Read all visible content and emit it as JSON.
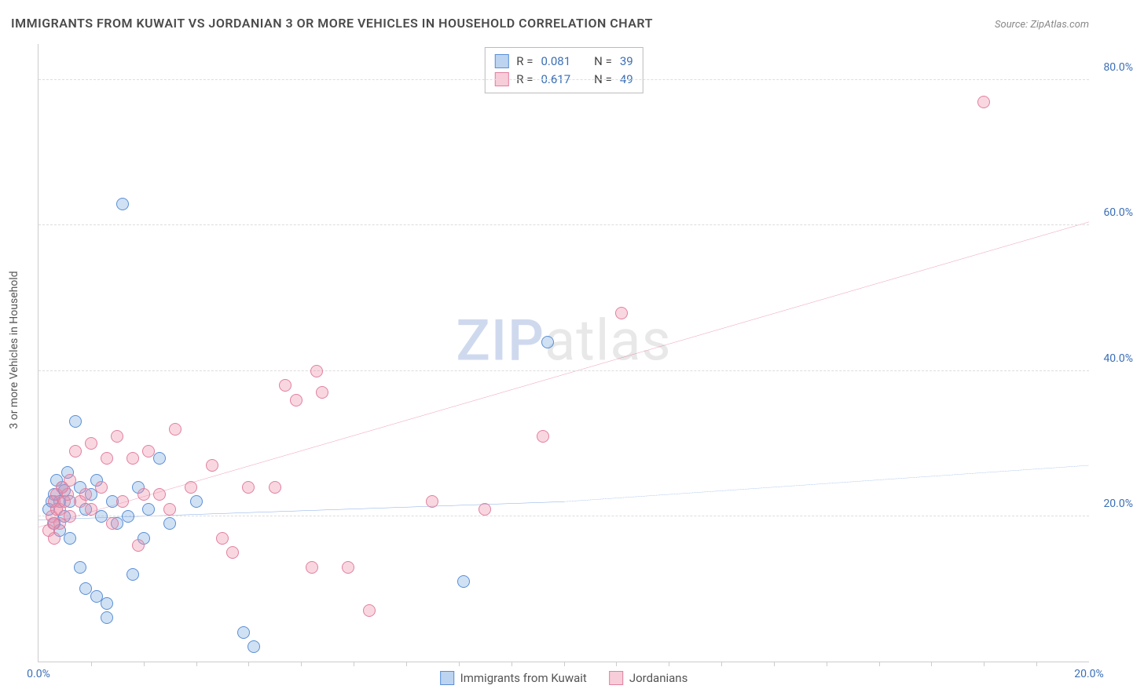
{
  "title": "IMMIGRANTS FROM KUWAIT VS JORDANIAN 3 OR MORE VEHICLES IN HOUSEHOLD CORRELATION CHART",
  "title_fontsize": 16,
  "source_label": "Source:",
  "source_name": "ZipAtlas.com",
  "source_fontsize": 13,
  "ylabel": "3 or more Vehicles in Household",
  "watermark_a": "ZIP",
  "watermark_b": "atlas",
  "chart": {
    "type": "scatter",
    "background_color": "#ffffff",
    "grid_color": "#dddddd",
    "axis_color": "#cccccc",
    "xlim": [
      0,
      20
    ],
    "ylim": [
      0,
      85
    ],
    "xticks": [
      0,
      20
    ],
    "xtick_labels": [
      "0.0%",
      "20.0%"
    ],
    "xtick_minor": [
      1,
      2,
      3,
      4,
      5,
      6,
      7,
      8,
      9,
      10,
      11,
      12,
      13,
      14,
      15,
      16,
      17,
      18,
      19
    ],
    "yticks": [
      20,
      40,
      60,
      80
    ],
    "ytick_labels": [
      "20.0%",
      "40.0%",
      "60.0%",
      "80.0%"
    ],
    "marker_radius": 8,
    "marker_stroke_width": 1.5,
    "series": [
      {
        "name": "Immigrants from Kuwait",
        "fill": "rgba(120,168,224,0.35)",
        "stroke": "#5a8fd6",
        "swatch_fill": "#bcd4f0",
        "swatch_stroke": "#5a8fd6",
        "R": "0.081",
        "N": "39",
        "trend": {
          "x1": 0,
          "y1": 19.5,
          "x2": 10,
          "y2": 22.0,
          "x2_dash": 20,
          "y2_dash": 27.0,
          "color": "#2e6fd1",
          "width": 2.5
        },
        "points": [
          [
            0.2,
            21
          ],
          [
            0.3,
            23
          ],
          [
            0.3,
            19
          ],
          [
            0.35,
            25
          ],
          [
            0.4,
            22
          ],
          [
            0.4,
            18
          ],
          [
            0.45,
            24
          ],
          [
            0.5,
            23.5
          ],
          [
            0.5,
            20
          ],
          [
            0.55,
            26
          ],
          [
            0.6,
            22
          ],
          [
            0.6,
            17
          ],
          [
            0.7,
            33
          ],
          [
            0.8,
            24
          ],
          [
            0.8,
            13
          ],
          [
            0.9,
            21
          ],
          [
            0.9,
            10
          ],
          [
            1.0,
            23
          ],
          [
            1.1,
            25
          ],
          [
            1.1,
            9
          ],
          [
            1.2,
            20
          ],
          [
            1.3,
            6
          ],
          [
            1.3,
            8
          ],
          [
            1.4,
            22
          ],
          [
            1.5,
            19
          ],
          [
            1.6,
            63
          ],
          [
            1.7,
            20
          ],
          [
            1.8,
            12
          ],
          [
            1.9,
            24
          ],
          [
            2.0,
            17
          ],
          [
            2.1,
            21
          ],
          [
            2.3,
            28
          ],
          [
            2.5,
            19
          ],
          [
            3.0,
            22
          ],
          [
            3.9,
            4
          ],
          [
            4.1,
            2
          ],
          [
            8.1,
            11
          ],
          [
            9.7,
            44
          ],
          [
            0.25,
            22
          ]
        ]
      },
      {
        "name": "Jordanians",
        "fill": "rgba(238,140,170,0.35)",
        "stroke": "#e2809f",
        "swatch_fill": "#f6cdd9",
        "swatch_stroke": "#e2809f",
        "R": "0.617",
        "N": "49",
        "trend": {
          "x1": 0,
          "y1": 18.5,
          "x2": 20,
          "y2": 60.5,
          "color": "#e25580",
          "width": 2.5
        },
        "points": [
          [
            0.2,
            18
          ],
          [
            0.25,
            20
          ],
          [
            0.3,
            22
          ],
          [
            0.3,
            17
          ],
          [
            0.35,
            23
          ],
          [
            0.4,
            21
          ],
          [
            0.4,
            19
          ],
          [
            0.45,
            24
          ],
          [
            0.5,
            22
          ],
          [
            0.55,
            23
          ],
          [
            0.6,
            20
          ],
          [
            0.6,
            25
          ],
          [
            0.7,
            29
          ],
          [
            0.8,
            22
          ],
          [
            0.9,
            23
          ],
          [
            1.0,
            21
          ],
          [
            1.0,
            30
          ],
          [
            1.2,
            24
          ],
          [
            1.3,
            28
          ],
          [
            1.4,
            19
          ],
          [
            1.5,
            31
          ],
          [
            1.6,
            22
          ],
          [
            1.8,
            28
          ],
          [
            1.9,
            16
          ],
          [
            2.0,
            23
          ],
          [
            2.1,
            29
          ],
          [
            2.3,
            23
          ],
          [
            2.5,
            21
          ],
          [
            2.6,
            32
          ],
          [
            2.9,
            24
          ],
          [
            3.3,
            27
          ],
          [
            3.5,
            17
          ],
          [
            3.7,
            15
          ],
          [
            4.0,
            24
          ],
          [
            4.5,
            24
          ],
          [
            4.7,
            38
          ],
          [
            4.9,
            36
          ],
          [
            5.2,
            13
          ],
          [
            5.3,
            40
          ],
          [
            5.4,
            37
          ],
          [
            5.9,
            13
          ],
          [
            6.3,
            7
          ],
          [
            7.5,
            22
          ],
          [
            8.5,
            21
          ],
          [
            9.6,
            31
          ],
          [
            11.1,
            48
          ],
          [
            18.0,
            77
          ],
          [
            0.35,
            21
          ],
          [
            0.28,
            19
          ]
        ]
      }
    ],
    "legend_bottom": [
      {
        "label": "Immigrants from Kuwait",
        "swatch_fill": "#bcd4f0",
        "swatch_stroke": "#5a8fd6"
      },
      {
        "label": "Jordanians",
        "swatch_fill": "#f6cdd9",
        "swatch_stroke": "#e2809f"
      }
    ]
  }
}
